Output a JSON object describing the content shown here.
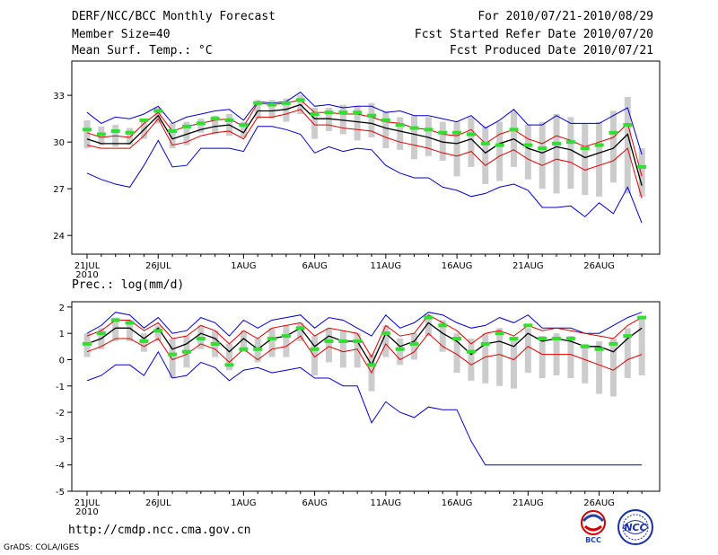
{
  "header": {
    "title": "DERF/NCC/BCC Monthly Forecast",
    "member_size": "Member Size=40",
    "period": "For 2010/07/21-2010/08/29",
    "fcst_started": "Fcst Started Refer Date 2010/07/20",
    "fcst_produced": "Fcst Produced Date 2010/07/21"
  },
  "footer": {
    "url": "http://cmdp.ncc.cma.gov.cn",
    "credit": "GrADS: COLA/IGES"
  },
  "logos": {
    "bcc": "BCC",
    "ncc": "NCC"
  },
  "colors": {
    "mean": "#000000",
    "spread": "#dd0000",
    "extreme": "#0000cc",
    "box": "#cccccc",
    "obs": "#33dd33"
  },
  "chart_data": [
    {
      "type": "line",
      "title": "Mean Surf. Temp.: °C",
      "x_tick_labels": [
        "21JUL",
        "26JUL",
        "1AUG",
        "6AUG",
        "11AUG",
        "16AUG",
        "21AUG",
        "26AUG"
      ],
      "x_tick_days": [
        0,
        5,
        11,
        16,
        21,
        26,
        31,
        36
      ],
      "year_label": "2010",
      "ylim": [
        22.8,
        35.2
      ],
      "y_ticks": [
        24,
        27,
        30,
        33
      ],
      "days": 39,
      "series": [
        {
          "name": "ensemble mean",
          "role": "mean",
          "values": [
            30.2,
            29.9,
            29.9,
            29.9,
            30.8,
            31.7,
            30.2,
            30.5,
            30.8,
            31.0,
            31.1,
            30.6,
            32.0,
            32.0,
            32.1,
            32.4,
            31.5,
            31.5,
            31.4,
            31.3,
            31.2,
            30.9,
            30.7,
            30.5,
            30.3,
            30.0,
            29.9,
            30.2,
            29.3,
            29.9,
            30.2,
            29.6,
            29.3,
            29.7,
            29.5,
            29.0,
            29.3,
            29.6,
            30.5,
            27.2
          ]
        },
        {
          "name": "spread upper",
          "role": "spread",
          "values": [
            30.6,
            30.3,
            30.4,
            30.3,
            31.2,
            31.9,
            30.7,
            31.0,
            31.2,
            31.4,
            31.5,
            31.0,
            32.5,
            32.4,
            32.5,
            32.7,
            31.9,
            31.9,
            31.8,
            31.8,
            31.6,
            31.3,
            31.2,
            30.9,
            30.8,
            30.5,
            30.4,
            30.8,
            29.9,
            30.5,
            30.8,
            30.2,
            29.9,
            30.4,
            30.1,
            29.7,
            30.0,
            30.3,
            31.2,
            27.8
          ]
        },
        {
          "name": "spread lower",
          "role": "spread",
          "values": [
            29.8,
            29.6,
            29.6,
            29.6,
            30.4,
            31.5,
            29.8,
            30.0,
            30.4,
            30.6,
            30.7,
            30.2,
            31.6,
            31.6,
            31.8,
            32.1,
            31.1,
            31.1,
            30.9,
            30.8,
            30.7,
            30.3,
            30.0,
            29.8,
            29.6,
            29.3,
            29.1,
            29.4,
            28.5,
            29.1,
            29.5,
            28.9,
            28.5,
            28.9,
            28.7,
            28.2,
            28.5,
            28.8,
            29.6,
            26.4
          ]
        },
        {
          "name": "ensemble max",
          "role": "extreme",
          "values": [
            31.9,
            31.2,
            31.6,
            31.5,
            31.8,
            32.3,
            31.2,
            31.6,
            31.8,
            32.0,
            32.1,
            31.4,
            32.6,
            32.5,
            32.6,
            33.2,
            32.3,
            32.4,
            32.2,
            32.3,
            32.3,
            31.9,
            32.0,
            31.7,
            31.7,
            31.5,
            31.3,
            31.7,
            30.9,
            31.4,
            32.1,
            31.1,
            31.1,
            31.7,
            31.2,
            31.2,
            31.2,
            31.7,
            32.2,
            29.2
          ]
        },
        {
          "name": "ensemble min",
          "role": "extreme",
          "values": [
            28.0,
            27.6,
            27.3,
            27.1,
            28.5,
            30.1,
            28.4,
            28.5,
            29.6,
            29.6,
            29.6,
            29.4,
            31.0,
            31.0,
            30.8,
            30.5,
            29.3,
            29.7,
            29.4,
            29.6,
            29.5,
            28.5,
            28.0,
            27.7,
            27.7,
            27.1,
            26.9,
            26.5,
            26.7,
            27.1,
            27.3,
            26.9,
            25.8,
            25.8,
            25.9,
            25.2,
            26.1,
            25.4,
            27.1,
            24.8
          ]
        }
      ],
      "boxes": {
        "upper": [
          31.4,
          31.0,
          31.1,
          30.9,
          31.4,
          32.2,
          31.2,
          31.3,
          31.5,
          31.7,
          31.8,
          31.3,
          32.7,
          32.7,
          32.8,
          33.0,
          32.2,
          32.2,
          32.4,
          32.3,
          32.5,
          32.0,
          31.6,
          31.7,
          31.6,
          31.3,
          31.3,
          31.6,
          31.0,
          31.3,
          32.0,
          31.1,
          31.3,
          31.8,
          31.6,
          31.2,
          31.3,
          32.0,
          32.9,
          29.6
        ],
        "lower": [
          29.6,
          29.8,
          29.7,
          29.8,
          30.2,
          31.2,
          29.6,
          29.8,
          30.6,
          30.5,
          30.4,
          30.3,
          31.5,
          31.5,
          31.3,
          31.8,
          30.2,
          30.7,
          30.5,
          30.1,
          30.3,
          29.6,
          29.5,
          28.9,
          29.1,
          28.8,
          27.8,
          28.4,
          27.3,
          27.5,
          28.4,
          27.6,
          27.0,
          26.7,
          27.0,
          26.6,
          26.5,
          27.4,
          26.7,
          26.5
        ]
      },
      "observed": [
        30.8,
        30.5,
        30.7,
        30.6,
        31.4,
        32.0,
        30.7,
        31.0,
        31.2,
        31.5,
        31.4,
        31.1,
        32.5,
        32.4,
        32.5,
        32.7,
        31.8,
        31.9,
        31.9,
        31.9,
        31.7,
        31.4,
        31.1,
        30.9,
        30.8,
        30.6,
        30.6,
        30.5,
        29.9,
        29.8,
        30.8,
        29.8,
        29.6,
        29.9,
        30.0,
        29.6,
        29.8,
        30.6,
        31.1,
        28.4
      ]
    },
    {
      "type": "line",
      "title": "Prec.: log(mm/d)",
      "x_tick_labels": [
        "21JUL",
        "26JUL",
        "1AUG",
        "6AUG",
        "11AUG",
        "16AUG",
        "21AUG",
        "26AUG"
      ],
      "x_tick_days": [
        0,
        5,
        11,
        16,
        21,
        26,
        31,
        36
      ],
      "year_label": "2010",
      "ylim": [
        -5,
        2.2
      ],
      "y_ticks": [
        -5,
        -4,
        -3,
        -2,
        -1,
        0,
        1,
        2
      ],
      "days": 39,
      "series": [
        {
          "name": "ensemble mean",
          "role": "mean",
          "values": [
            0.6,
            0.8,
            1.2,
            1.2,
            0.8,
            1.2,
            0.4,
            0.6,
            1.0,
            0.8,
            0.3,
            0.8,
            0.4,
            0.8,
            0.9,
            1.2,
            0.5,
            0.9,
            0.7,
            0.7,
            -0.2,
            1.0,
            0.5,
            0.7,
            1.4,
            1.0,
            0.7,
            0.2,
            0.6,
            0.7,
            0.5,
            1.0,
            0.7,
            0.8,
            0.7,
            0.5,
            0.5,
            0.3,
            0.8,
            1.2
          ]
        },
        {
          "name": "spread upper",
          "role": "spread",
          "values": [
            0.9,
            1.1,
            1.5,
            1.5,
            1.1,
            1.4,
            0.8,
            0.9,
            1.3,
            1.1,
            0.6,
            1.1,
            0.8,
            1.2,
            1.3,
            1.4,
            0.9,
            1.2,
            1.1,
            1.0,
            0.1,
            1.3,
            0.9,
            1.0,
            1.7,
            1.4,
            1.1,
            0.6,
            1.0,
            1.1,
            0.9,
            1.3,
            1.1,
            1.2,
            1.1,
            1.0,
            0.9,
            0.8,
            1.3,
            1.6
          ]
        },
        {
          "name": "spread lower",
          "role": "spread",
          "values": [
            0.3,
            0.5,
            0.8,
            0.8,
            0.5,
            0.8,
            0.0,
            0.2,
            0.6,
            0.4,
            -0.1,
            0.4,
            0.0,
            0.4,
            0.5,
            0.9,
            0.1,
            0.5,
            0.3,
            0.4,
            -0.5,
            0.6,
            0.0,
            0.3,
            1.0,
            0.5,
            0.2,
            -0.2,
            0.1,
            0.2,
            0.0,
            0.5,
            0.2,
            0.2,
            0.2,
            0.0,
            -0.2,
            -0.4,
            0.0,
            0.2
          ]
        },
        {
          "name": "ensemble max",
          "role": "extreme",
          "values": [
            1.0,
            1.3,
            1.8,
            1.7,
            1.2,
            1.6,
            1.0,
            1.1,
            1.6,
            1.4,
            0.9,
            1.5,
            1.2,
            1.5,
            1.6,
            1.7,
            1.2,
            1.6,
            1.5,
            1.2,
            0.9,
            1.7,
            1.2,
            1.4,
            1.8,
            1.7,
            1.4,
            1.2,
            1.3,
            1.6,
            1.4,
            1.7,
            1.2,
            1.2,
            1.2,
            1.0,
            1.0,
            1.3,
            1.6,
            1.8
          ]
        },
        {
          "name": "ensemble min",
          "role": "extreme",
          "values": [
            -0.8,
            -0.6,
            -0.2,
            -0.2,
            -0.6,
            0.3,
            -0.7,
            -0.6,
            -0.1,
            -0.3,
            -0.8,
            -0.4,
            -0.3,
            -0.5,
            -0.4,
            -0.3,
            -0.7,
            -0.7,
            -1.0,
            -1.0,
            -2.4,
            -1.6,
            -2.0,
            -2.2,
            -1.8,
            -1.9,
            -1.9,
            -3.1,
            -4.0,
            -4.0,
            -4.0,
            -4.0,
            -4.0,
            -4.0,
            -4.0,
            -4.0,
            -4.0,
            -4.0,
            -4.0,
            -4.0
          ]
        }
      ],
      "boxes": {
        "upper": [
          1.0,
          1.2,
          1.6,
          1.5,
          1.0,
          1.3,
          0.8,
          0.9,
          1.3,
          1.1,
          0.6,
          1.1,
          0.8,
          1.2,
          1.3,
          1.4,
          0.9,
          1.2,
          1.1,
          1.0,
          0.2,
          1.3,
          0.8,
          1.0,
          1.7,
          1.5,
          1.0,
          0.8,
          1.0,
          1.2,
          0.8,
          1.2,
          0.9,
          1.0,
          0.9,
          0.6,
          0.7,
          0.8,
          1.2,
          1.6
        ],
        "lower": [
          0.1,
          0.4,
          0.7,
          0.7,
          0.3,
          0.7,
          -0.7,
          -0.3,
          0.4,
          0.1,
          -0.4,
          0.3,
          -0.1,
          0.1,
          0.1,
          0.7,
          -0.6,
          -0.1,
          -0.3,
          -0.3,
          -1.2,
          0.1,
          -0.2,
          0.0,
          0.9,
          0.3,
          -0.5,
          -0.8,
          -0.9,
          -1.0,
          -1.1,
          -0.5,
          -0.7,
          -0.6,
          -0.7,
          -0.9,
          -1.3,
          -1.4,
          -0.7,
          -0.6
        ]
      },
      "observed": [
        0.6,
        1.0,
        1.5,
        1.4,
        0.7,
        1.1,
        0.2,
        0.3,
        0.8,
        0.6,
        -0.2,
        0.4,
        0.4,
        0.8,
        0.9,
        1.2,
        0.4,
        0.7,
        0.7,
        0.7,
        -0.2,
        1.0,
        0.4,
        0.6,
        1.6,
        1.3,
        0.8,
        0.3,
        0.6,
        1.0,
        0.8,
        1.3,
        0.8,
        0.8,
        0.8,
        0.5,
        0.4,
        0.6,
        0.9,
        1.6
      ]
    }
  ]
}
